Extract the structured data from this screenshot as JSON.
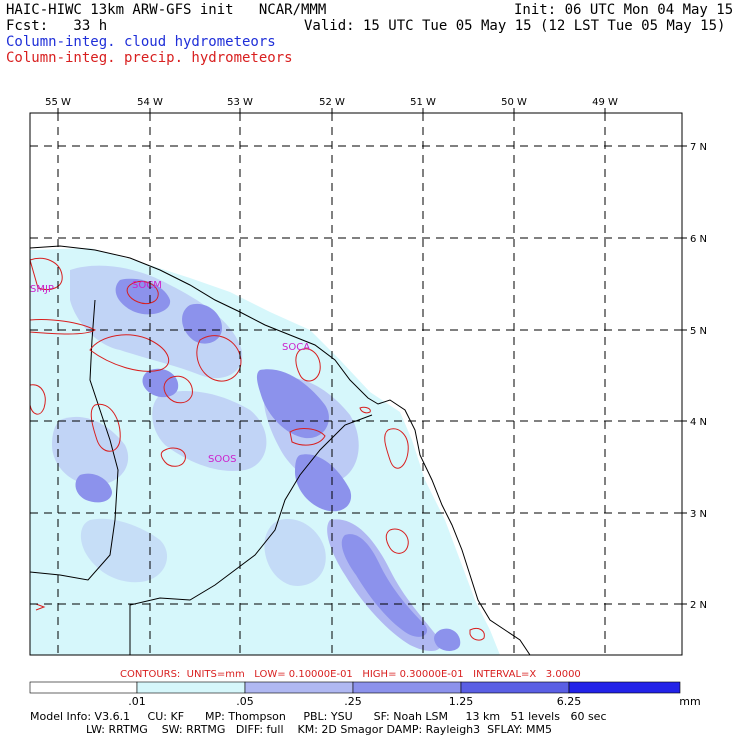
{
  "header": {
    "title_left": "HAIC-HIWC 13km ARW-GFS init   NCAR/MMM",
    "init": "Init: 06 UTC Mon 04 May 15",
    "fcst": "Fcst:   33 h",
    "valid": "Valid: 15 UTC Tue 05 May 15 (12 LST Tue 05 May 15)",
    "field1": "Column-integ. cloud hydrometeors",
    "field2": "Column-integ. precip. hydrometeors"
  },
  "axes": {
    "lon_labels": [
      "55 W",
      "54 W",
      "53 W",
      "52 W",
      "51 W",
      "50 W",
      "49 W"
    ],
    "lat_labels": [
      "7 N",
      "6 N",
      "5 N",
      "4 N",
      "3 N",
      "2 N"
    ]
  },
  "stations": [
    "SMJP",
    "SOCM",
    "SOCA",
    "SOOS"
  ],
  "contours_note": "CONTOURS:  UNITS=mm   LOW= 0.10000E-01   HIGH= 0.30000E-01   INTERVAL=X   3.0000",
  "legend": {
    "labels": [
      ".01",
      ".05",
      ".25",
      "1.25",
      "6.25"
    ],
    "unit": "mm",
    "colors": [
      "#ffffff",
      "#d6f7fb",
      "#b0b8f2",
      "#8c92ec",
      "#5a5fe4",
      "#2222e8"
    ]
  },
  "footer": {
    "line1": "Model Info: V3.6.1     CU: KF      MP: Thompson     PBL: YSU      SF: Noah LSM     13 km   51 levels   60 sec",
    "line2": "                LW: RRTMG    SW: RRTMG   DIFF: full    KM: 2D Smagor DAMP: Rayleigh3  SFLAY: MM5"
  },
  "colors": {
    "cloud_text": "#1f2fd8",
    "precip_contour": "#d81f1f",
    "station_label": "#cc22cc",
    "land_shade_light": "#d6f7fb",
    "shade_mid": "#b0b8f2",
    "shade_dark": "#8c92ec"
  }
}
